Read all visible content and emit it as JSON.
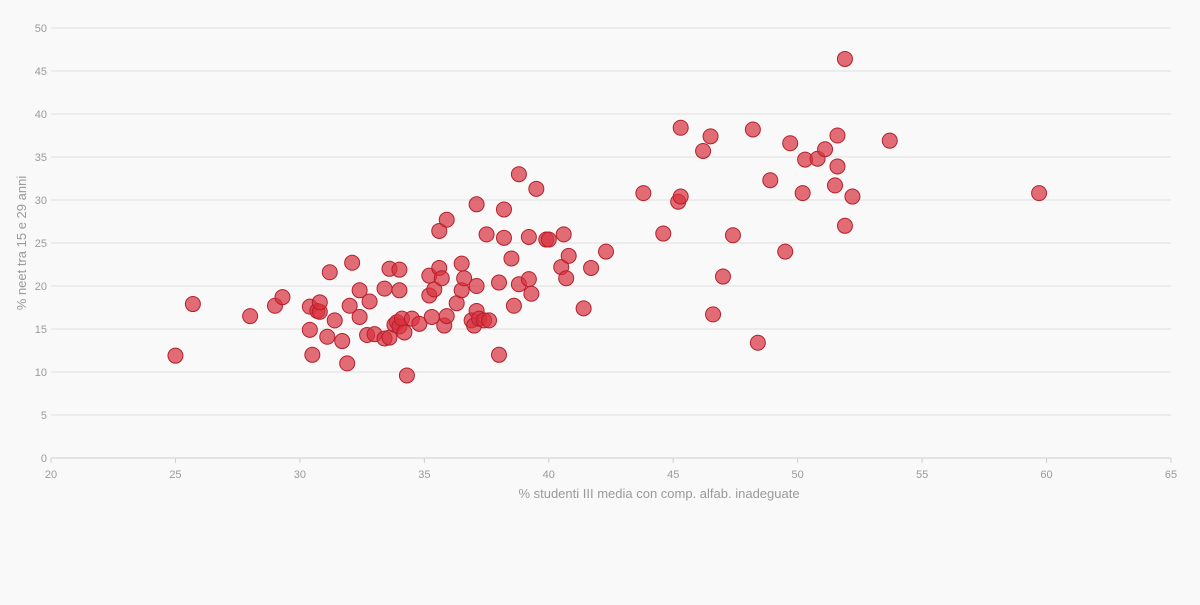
{
  "chart_data": {
    "type": "scatter",
    "title": "",
    "xlabel": "% studenti III media con comp. alfab. inadeguate",
    "ylabel": "% neet tra 15 e 29 anni",
    "xlim": [
      20,
      65
    ],
    "ylim": [
      0,
      50
    ],
    "x_ticks": [
      20,
      25,
      30,
      35,
      40,
      45,
      50,
      55,
      60,
      65
    ],
    "y_ticks": [
      0,
      5,
      10,
      15,
      20,
      25,
      30,
      35,
      40,
      45,
      50
    ],
    "grid": "horizontal",
    "legend": "none",
    "marker_color": "#d8313d",
    "marker_edge_color": "#b3202b",
    "grid_color": "#dedede",
    "text_color": "#9a9a9a",
    "points": [
      [
        25.0,
        11.9
      ],
      [
        25.7,
        17.9
      ],
      [
        28.0,
        16.5
      ],
      [
        29.0,
        17.7
      ],
      [
        29.3,
        18.7
      ],
      [
        30.4,
        17.6
      ],
      [
        30.4,
        14.9
      ],
      [
        30.5,
        12.0
      ],
      [
        30.7,
        17.1
      ],
      [
        30.8,
        17.0
      ],
      [
        30.8,
        18.1
      ],
      [
        31.1,
        14.1
      ],
      [
        31.2,
        21.6
      ],
      [
        31.4,
        16.0
      ],
      [
        31.7,
        13.6
      ],
      [
        31.9,
        11.0
      ],
      [
        32.0,
        17.7
      ],
      [
        32.1,
        22.7
      ],
      [
        32.4,
        19.5
      ],
      [
        32.4,
        16.4
      ],
      [
        32.7,
        14.3
      ],
      [
        32.8,
        18.2
      ],
      [
        33.0,
        14.4
      ],
      [
        33.4,
        19.7
      ],
      [
        33.4,
        13.9
      ],
      [
        33.6,
        14.0
      ],
      [
        33.6,
        22.0
      ],
      [
        33.8,
        15.5
      ],
      [
        33.9,
        15.8
      ],
      [
        34.0,
        21.9
      ],
      [
        34.0,
        19.5
      ],
      [
        34.0,
        15.3
      ],
      [
        34.1,
        16.2
      ],
      [
        34.2,
        14.6
      ],
      [
        34.3,
        9.6
      ],
      [
        34.5,
        16.2
      ],
      [
        34.8,
        15.6
      ],
      [
        35.2,
        21.2
      ],
      [
        35.2,
        18.9
      ],
      [
        35.3,
        16.4
      ],
      [
        35.4,
        19.6
      ],
      [
        35.6,
        26.4
      ],
      [
        35.6,
        22.1
      ],
      [
        35.7,
        20.9
      ],
      [
        35.8,
        15.4
      ],
      [
        35.9,
        27.7
      ],
      [
        35.9,
        16.5
      ],
      [
        36.3,
        18.0
      ],
      [
        36.5,
        22.6
      ],
      [
        36.5,
        19.5
      ],
      [
        36.6,
        20.9
      ],
      [
        36.9,
        16.0
      ],
      [
        37.0,
        15.4
      ],
      [
        37.1,
        29.5
      ],
      [
        37.1,
        20.0
      ],
      [
        37.1,
        17.1
      ],
      [
        37.2,
        16.2
      ],
      [
        37.4,
        16.0
      ],
      [
        37.5,
        26.0
      ],
      [
        37.6,
        16.0
      ],
      [
        38.0,
        20.4
      ],
      [
        38.0,
        12.0
      ],
      [
        38.2,
        28.9
      ],
      [
        38.2,
        25.6
      ],
      [
        38.5,
        23.2
      ],
      [
        38.6,
        17.7
      ],
      [
        38.8,
        33.0
      ],
      [
        38.8,
        20.2
      ],
      [
        39.2,
        25.7
      ],
      [
        39.2,
        20.8
      ],
      [
        39.3,
        19.1
      ],
      [
        39.5,
        31.3
      ],
      [
        39.9,
        25.4
      ],
      [
        40.0,
        25.4
      ],
      [
        40.5,
        22.2
      ],
      [
        40.6,
        26.0
      ],
      [
        40.7,
        20.9
      ],
      [
        40.8,
        23.5
      ],
      [
        41.4,
        17.4
      ],
      [
        41.7,
        22.1
      ],
      [
        42.3,
        24.0
      ],
      [
        43.8,
        30.8
      ],
      [
        44.6,
        26.1
      ],
      [
        45.2,
        29.8
      ],
      [
        45.3,
        38.4
      ],
      [
        45.3,
        30.4
      ],
      [
        46.2,
        35.7
      ],
      [
        46.5,
        37.4
      ],
      [
        46.6,
        16.7
      ],
      [
        47.0,
        21.1
      ],
      [
        47.4,
        25.9
      ],
      [
        48.2,
        38.2
      ],
      [
        48.4,
        13.4
      ],
      [
        48.9,
        32.3
      ],
      [
        49.5,
        24.0
      ],
      [
        49.7,
        36.6
      ],
      [
        50.2,
        30.8
      ],
      [
        50.3,
        34.7
      ],
      [
        50.8,
        34.8
      ],
      [
        51.1,
        35.9
      ],
      [
        51.5,
        31.7
      ],
      [
        51.6,
        37.5
      ],
      [
        51.6,
        33.9
      ],
      [
        51.9,
        46.4
      ],
      [
        51.9,
        27.0
      ],
      [
        52.2,
        30.4
      ],
      [
        53.7,
        36.9
      ],
      [
        59.7,
        30.8
      ]
    ]
  }
}
